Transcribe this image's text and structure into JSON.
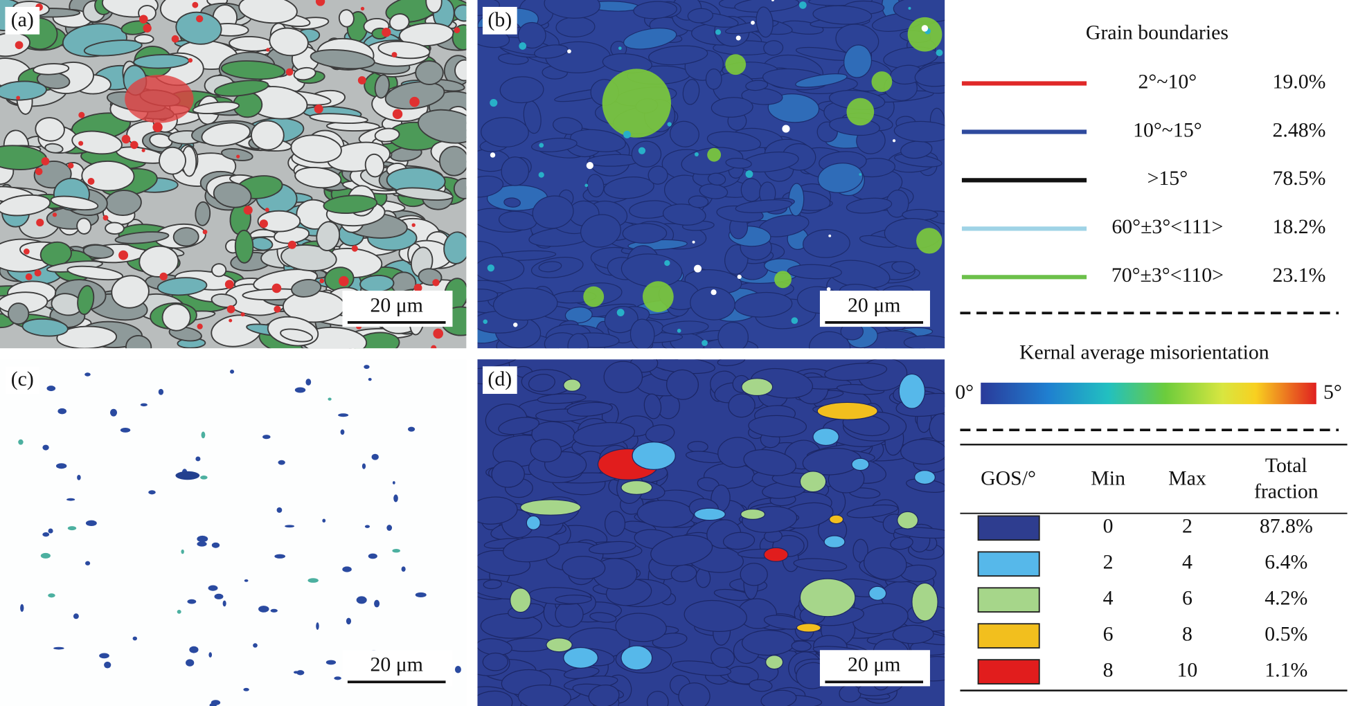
{
  "panels": [
    {
      "label": "(a)",
      "scale_bar": "20 μm"
    },
    {
      "label": "(b)",
      "scale_bar": "20 μm"
    },
    {
      "label": "(c)",
      "scale_bar": "20 μm"
    },
    {
      "label": "(d)",
      "scale_bar": "20 μm"
    }
  ],
  "grain_boundaries": {
    "title": "Grain boundaries",
    "rows": [
      {
        "color": "#e02828",
        "range": "2°~10°",
        "fraction": "19.0%"
      },
      {
        "color": "#2f4a9e",
        "range": "10°~15°",
        "fraction": "2.48%"
      },
      {
        "color": "#111111",
        "range": ">15°",
        "fraction": "78.5%"
      },
      {
        "color": "#9fd3e6",
        "range": "60°±3°<111>",
        "fraction": "18.2%"
      },
      {
        "color": "#6cc04a",
        "range": "70°±3°<110>",
        "fraction": "23.1%"
      }
    ]
  },
  "kam": {
    "title": "Kernal average misorientation",
    "min_label": "0°",
    "max_label": "5°"
  },
  "gos": {
    "headers": [
      "GOS/°",
      "Min",
      "Max",
      "Total fraction"
    ],
    "rows": [
      {
        "color": "#2e3d8f",
        "min": 0,
        "max": 2,
        "fraction": "87.8%"
      },
      {
        "color": "#56b8ea",
        "min": 2,
        "max": 4,
        "fraction": "6.4%"
      },
      {
        "color": "#a6d68a",
        "min": 4,
        "max": 6,
        "fraction": "4.2%"
      },
      {
        "color": "#f2bf1e",
        "min": 6,
        "max": 8,
        "fraction": "0.5%"
      },
      {
        "color": "#e11d1d",
        "min": 8,
        "max": 10,
        "fraction": "1.1%"
      }
    ]
  }
}
